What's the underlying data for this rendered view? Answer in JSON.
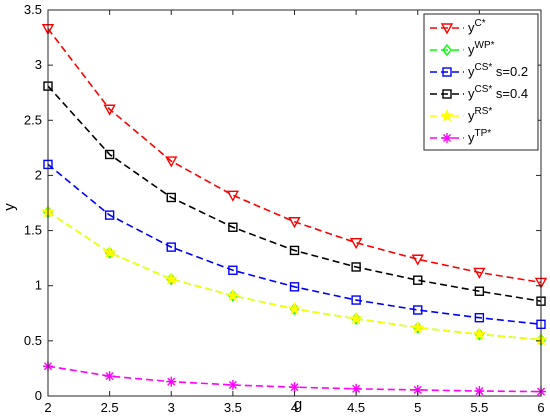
{
  "chart_data": {
    "type": "line",
    "xlabel": "g",
    "ylabel": "y",
    "xlim": [
      2,
      6
    ],
    "ylim": [
      0,
      3.5
    ],
    "x_ticks": [
      "2",
      "2.5",
      "3",
      "3.5",
      "4",
      "4.5",
      "5",
      "5.5",
      "6"
    ],
    "y_ticks": [
      "0",
      "0.5",
      "1",
      "1.5",
      "2",
      "2.5",
      "3",
      "3.5"
    ],
    "grid": false,
    "legend_position": "top-right",
    "x": [
      2,
      2.5,
      3,
      3.5,
      4,
      4.5,
      5,
      5.5,
      6
    ],
    "series": [
      {
        "base": "y",
        "sup": "C*",
        "suffix": "",
        "color": "#ff0000",
        "marker": "triangle-down",
        "values": [
          3.33,
          2.6,
          2.13,
          1.82,
          1.58,
          1.39,
          1.24,
          1.12,
          1.03
        ]
      },
      {
        "base": "y",
        "sup": "WP*",
        "suffix": "",
        "color": "#00ff00",
        "marker": "diamond",
        "values": [
          1.67,
          1.3,
          1.06,
          0.91,
          0.79,
          0.7,
          0.62,
          0.56,
          0.51
        ]
      },
      {
        "base": "y",
        "sup": "CS*",
        "suffix": " s=0.2",
        "color": "#0000ff",
        "marker": "square",
        "values": [
          2.1,
          1.64,
          1.35,
          1.14,
          0.99,
          0.87,
          0.78,
          0.71,
          0.65
        ]
      },
      {
        "base": "y",
        "sup": "CS*",
        "suffix": " s=0.4",
        "color": "#000000",
        "marker": "square",
        "values": [
          2.81,
          2.19,
          1.8,
          1.53,
          1.32,
          1.17,
          1.05,
          0.95,
          0.86
        ]
      },
      {
        "base": "y",
        "sup": "RS*",
        "suffix": "",
        "color": "#ffff00",
        "marker": "star",
        "values": [
          1.67,
          1.3,
          1.06,
          0.91,
          0.79,
          0.7,
          0.62,
          0.56,
          0.51
        ]
      },
      {
        "base": "y",
        "sup": "TP*",
        "suffix": "",
        "color": "#ff00ff",
        "marker": "asterisk",
        "values": [
          0.27,
          0.18,
          0.13,
          0.1,
          0.08,
          0.065,
          0.055,
          0.045,
          0.04
        ]
      }
    ]
  }
}
